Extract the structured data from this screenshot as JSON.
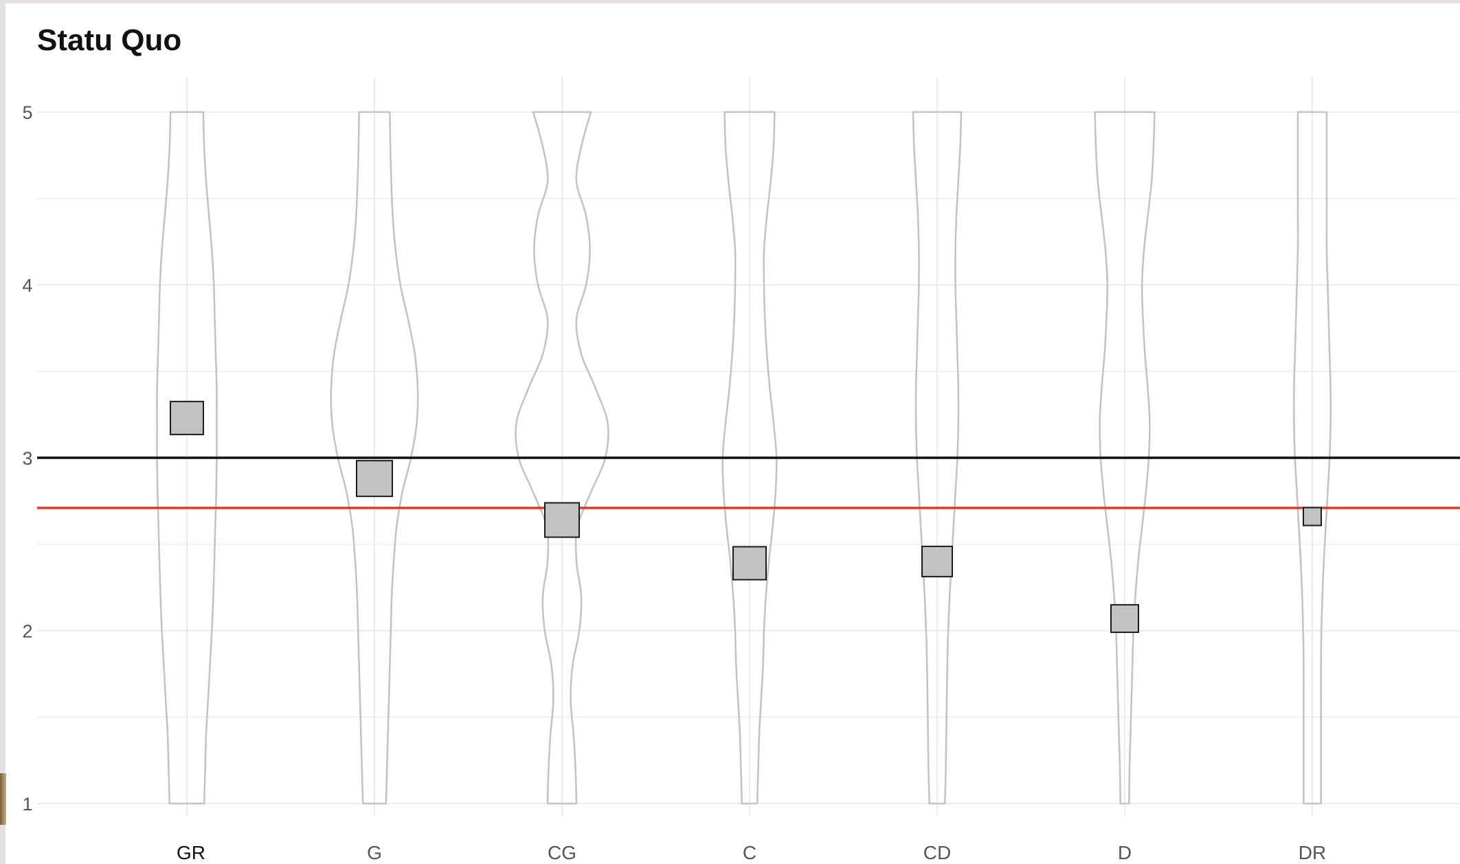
{
  "chart_data": {
    "type": "violin",
    "title": "Statu Quo",
    "xlabel": "",
    "ylabel": "",
    "categories": [
      "GR",
      "G",
      "CG",
      "C",
      "CD",
      "D",
      "DR"
    ],
    "ylim": [
      1,
      5
    ],
    "yticks": [
      1,
      2,
      3,
      4,
      5
    ],
    "grid": true,
    "means": [
      3.23,
      2.88,
      2.64,
      2.39,
      2.4,
      2.07,
      2.66
    ],
    "density_widths": [
      [
        0.34,
        0.36,
        0.4,
        0.46,
        0.52,
        0.56,
        0.58,
        0.6,
        0.62,
        0.62,
        0.62,
        0.61,
        0.59,
        0.57,
        0.55,
        0.52,
        0.48,
        0.44,
        0.4,
        0.38,
        0.36
      ],
      [
        0.32,
        0.33,
        0.35,
        0.38,
        0.44,
        0.54,
        0.7,
        0.84,
        0.9,
        0.88,
        0.76,
        0.58,
        0.46,
        0.4,
        0.36,
        0.34,
        0.32,
        0.3,
        0.28,
        0.26,
        0.24
      ],
      [
        0.6,
        0.4,
        0.3,
        0.5,
        0.58,
        0.5,
        0.3,
        0.4,
        0.7,
        0.95,
        0.9,
        0.6,
        0.32,
        0.3,
        0.4,
        0.36,
        0.22,
        0.18,
        0.24,
        0.28,
        0.3
      ],
      [
        0.52,
        0.5,
        0.44,
        0.36,
        0.3,
        0.3,
        0.32,
        0.36,
        0.42,
        0.5,
        0.56,
        0.54,
        0.48,
        0.4,
        0.34,
        0.3,
        0.28,
        0.24,
        0.2,
        0.18,
        0.16
      ],
      [
        0.5,
        0.48,
        0.44,
        0.4,
        0.38,
        0.38,
        0.4,
        0.42,
        0.44,
        0.44,
        0.42,
        0.38,
        0.34,
        0.3,
        0.26,
        0.23,
        0.21,
        0.2,
        0.19,
        0.18,
        0.16
      ],
      [
        0.62,
        0.6,
        0.56,
        0.48,
        0.4,
        0.36,
        0.38,
        0.42,
        0.48,
        0.52,
        0.5,
        0.44,
        0.36,
        0.28,
        0.22,
        0.18,
        0.16,
        0.14,
        0.12,
        0.1,
        0.09
      ],
      [
        0.3,
        0.3,
        0.3,
        0.3,
        0.3,
        0.32,
        0.34,
        0.36,
        0.38,
        0.38,
        0.36,
        0.32,
        0.28,
        0.24,
        0.21,
        0.19,
        0.18,
        0.18,
        0.18,
        0.18,
        0.18
      ]
    ],
    "reference_lines": [
      {
        "y": 3.0,
        "color": "#111111"
      },
      {
        "y": 2.71,
        "color": "#e8301c"
      }
    ],
    "colors": {
      "violin_stroke": "#c4c4c4",
      "mean_fill": "#c2c2c2",
      "mean_stroke": "#1a1a1a",
      "grid": "#e6e6e6"
    }
  }
}
